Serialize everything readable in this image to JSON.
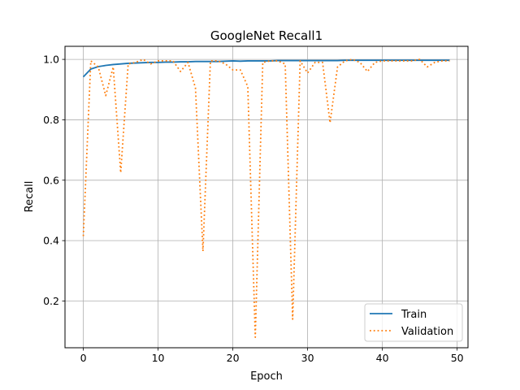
{
  "chart_data": {
    "type": "line",
    "title": "GoogleNet Recall1",
    "xlabel": "Epoch",
    "ylabel": "Recall",
    "xlim": [
      -2.45,
      51.45
    ],
    "ylim": [
      0.0453,
      1.0433
    ],
    "xticks": [
      0,
      10,
      20,
      30,
      40,
      50
    ],
    "yticks": [
      0.2,
      0.4,
      0.6,
      0.8,
      1.0
    ],
    "xtick_labels": [
      "0",
      "10",
      "20",
      "30",
      "40",
      "50"
    ],
    "ytick_labels": [
      "0.2",
      "0.4",
      "0.6",
      "0.8",
      "1.0"
    ],
    "grid": true,
    "legend_position": "lower-right",
    "x": [
      0,
      1,
      2,
      3,
      4,
      5,
      6,
      7,
      8,
      9,
      10,
      11,
      12,
      13,
      14,
      15,
      16,
      17,
      18,
      19,
      20,
      21,
      22,
      23,
      24,
      25,
      26,
      27,
      28,
      29,
      30,
      31,
      32,
      33,
      34,
      35,
      36,
      37,
      38,
      39,
      40,
      41,
      42,
      43,
      44,
      45,
      46,
      47,
      48,
      49
    ],
    "series": [
      {
        "name": "Train",
        "color": "#1f77b4",
        "style": "solid",
        "values": [
          0.942,
          0.968,
          0.976,
          0.98,
          0.983,
          0.985,
          0.987,
          0.988,
          0.989,
          0.99,
          0.99,
          0.991,
          0.991,
          0.992,
          0.992,
          0.993,
          0.993,
          0.993,
          0.993,
          0.994,
          0.995,
          0.994,
          0.995,
          0.995,
          0.995,
          0.995,
          0.996,
          0.996,
          0.996,
          0.996,
          0.996,
          0.996,
          0.996,
          0.996,
          0.996,
          0.997,
          0.997,
          0.997,
          0.997,
          0.997,
          0.997,
          0.997,
          0.997,
          0.997,
          0.997,
          0.997,
          0.997,
          0.997,
          0.997,
          0.997
        ]
      },
      {
        "name": "Validation",
        "color": "#ff7f0e",
        "style": "dotted",
        "values": [
          0.415,
          0.995,
          0.975,
          0.88,
          0.975,
          0.625,
          0.985,
          0.99,
          1.0,
          0.985,
          0.995,
          0.995,
          0.995,
          0.96,
          0.99,
          0.905,
          0.365,
          0.995,
          0.995,
          0.985,
          0.965,
          0.965,
          0.91,
          0.08,
          0.99,
          0.995,
          0.995,
          0.985,
          0.14,
          0.995,
          0.955,
          0.99,
          0.99,
          0.79,
          0.975,
          0.995,
          1.0,
          0.99,
          0.96,
          0.99,
          0.995,
          0.995,
          0.995,
          0.995,
          0.995,
          1.0,
          0.975,
          0.99,
          0.995,
          0.995
        ]
      }
    ]
  }
}
